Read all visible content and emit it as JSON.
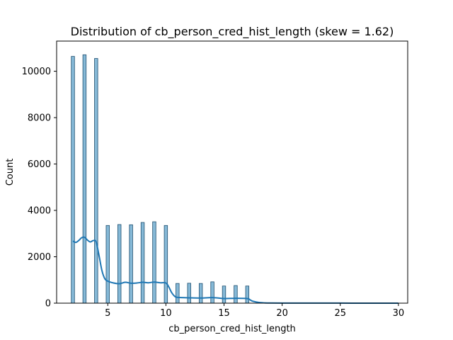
{
  "chart_data": {
    "type": "bar",
    "title": "Distribution of cb_person_cred_hist_length (skew = 1.62)",
    "xlabel": "cb_person_cred_hist_length",
    "ylabel": "Count",
    "xlim": [
      0.6,
      30.8
    ],
    "ylim": [
      0,
      11300
    ],
    "xticks": [
      5,
      10,
      15,
      20,
      25,
      30
    ],
    "yticks": [
      0,
      2000,
      4000,
      6000,
      8000,
      10000
    ],
    "grid": false,
    "legend": "none",
    "bin_width": 0.28,
    "series": [
      {
        "kind": "histogram",
        "x": [
          2,
          3,
          4,
          5,
          6,
          7,
          8,
          9,
          10,
          11,
          12,
          13,
          14,
          15,
          16,
          17,
          18,
          19,
          20,
          21,
          22,
          23,
          24,
          25,
          26,
          27,
          28,
          29,
          30
        ],
        "values": [
          10640,
          10710,
          10550,
          3350,
          3390,
          3380,
          3480,
          3510,
          3350,
          850,
          860,
          850,
          920,
          740,
          760,
          740,
          12,
          10,
          15,
          10,
          5,
          6,
          3,
          4,
          2,
          3,
          2,
          3,
          2
        ],
        "fill": "#7fb5d5",
        "edge": "#1f4f6f"
      },
      {
        "kind": "kde",
        "x": [
          2,
          2.25,
          2.5,
          2.75,
          3,
          3.25,
          3.5,
          3.75,
          4,
          4.25,
          4.5,
          4.75,
          5,
          5.5,
          6,
          6.5,
          7,
          7.5,
          8,
          8.5,
          9,
          9.5,
          10,
          10.25,
          10.5,
          10.75,
          11,
          12,
          13,
          14,
          15,
          16,
          17,
          17.25,
          17.5,
          18,
          18.5,
          19,
          20,
          22,
          25,
          28,
          30
        ],
        "values": [
          2680,
          2620,
          2700,
          2820,
          2840,
          2720,
          2640,
          2700,
          2640,
          2050,
          1400,
          1050,
          950,
          870,
          840,
          900,
          860,
          870,
          900,
          880,
          910,
          880,
          870,
          700,
          450,
          300,
          250,
          230,
          220,
          240,
          200,
          210,
          200,
          140,
          80,
          30,
          12,
          6,
          5,
          3,
          2,
          1,
          0
        ],
        "color": "#1f77b4"
      }
    ]
  }
}
